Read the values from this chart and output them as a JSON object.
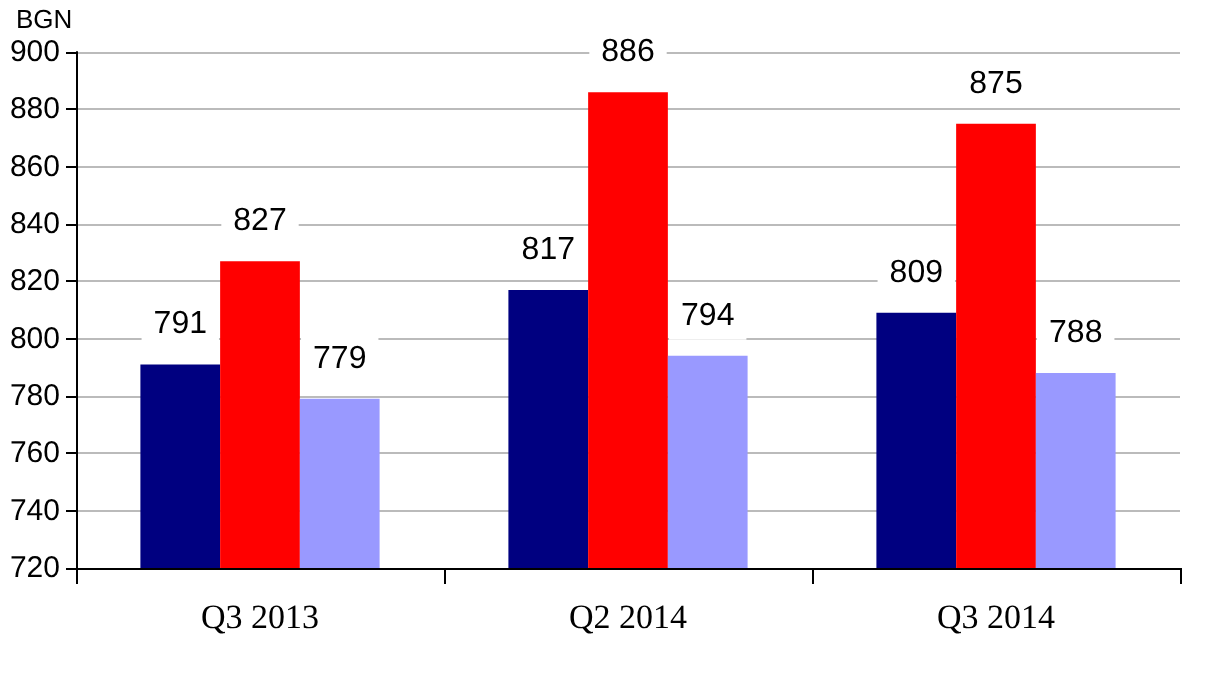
{
  "chart_data": {
    "type": "bar",
    "ylabel": "BGN",
    "categories": [
      "Q3 2013",
      "Q2 2014",
      "Q3 2014"
    ],
    "series": [
      {
        "color": "#000080",
        "values": [
          791,
          817,
          809
        ]
      },
      {
        "color": "#ff0000",
        "values": [
          827,
          886,
          875
        ]
      },
      {
        "color": "#9999ff",
        "values": [
          779,
          794,
          788
        ]
      }
    ],
    "ylim": [
      720,
      900
    ],
    "yticks": [
      720,
      740,
      760,
      780,
      800,
      820,
      840,
      860,
      880,
      900
    ],
    "grid": "y",
    "data_labels": true
  }
}
